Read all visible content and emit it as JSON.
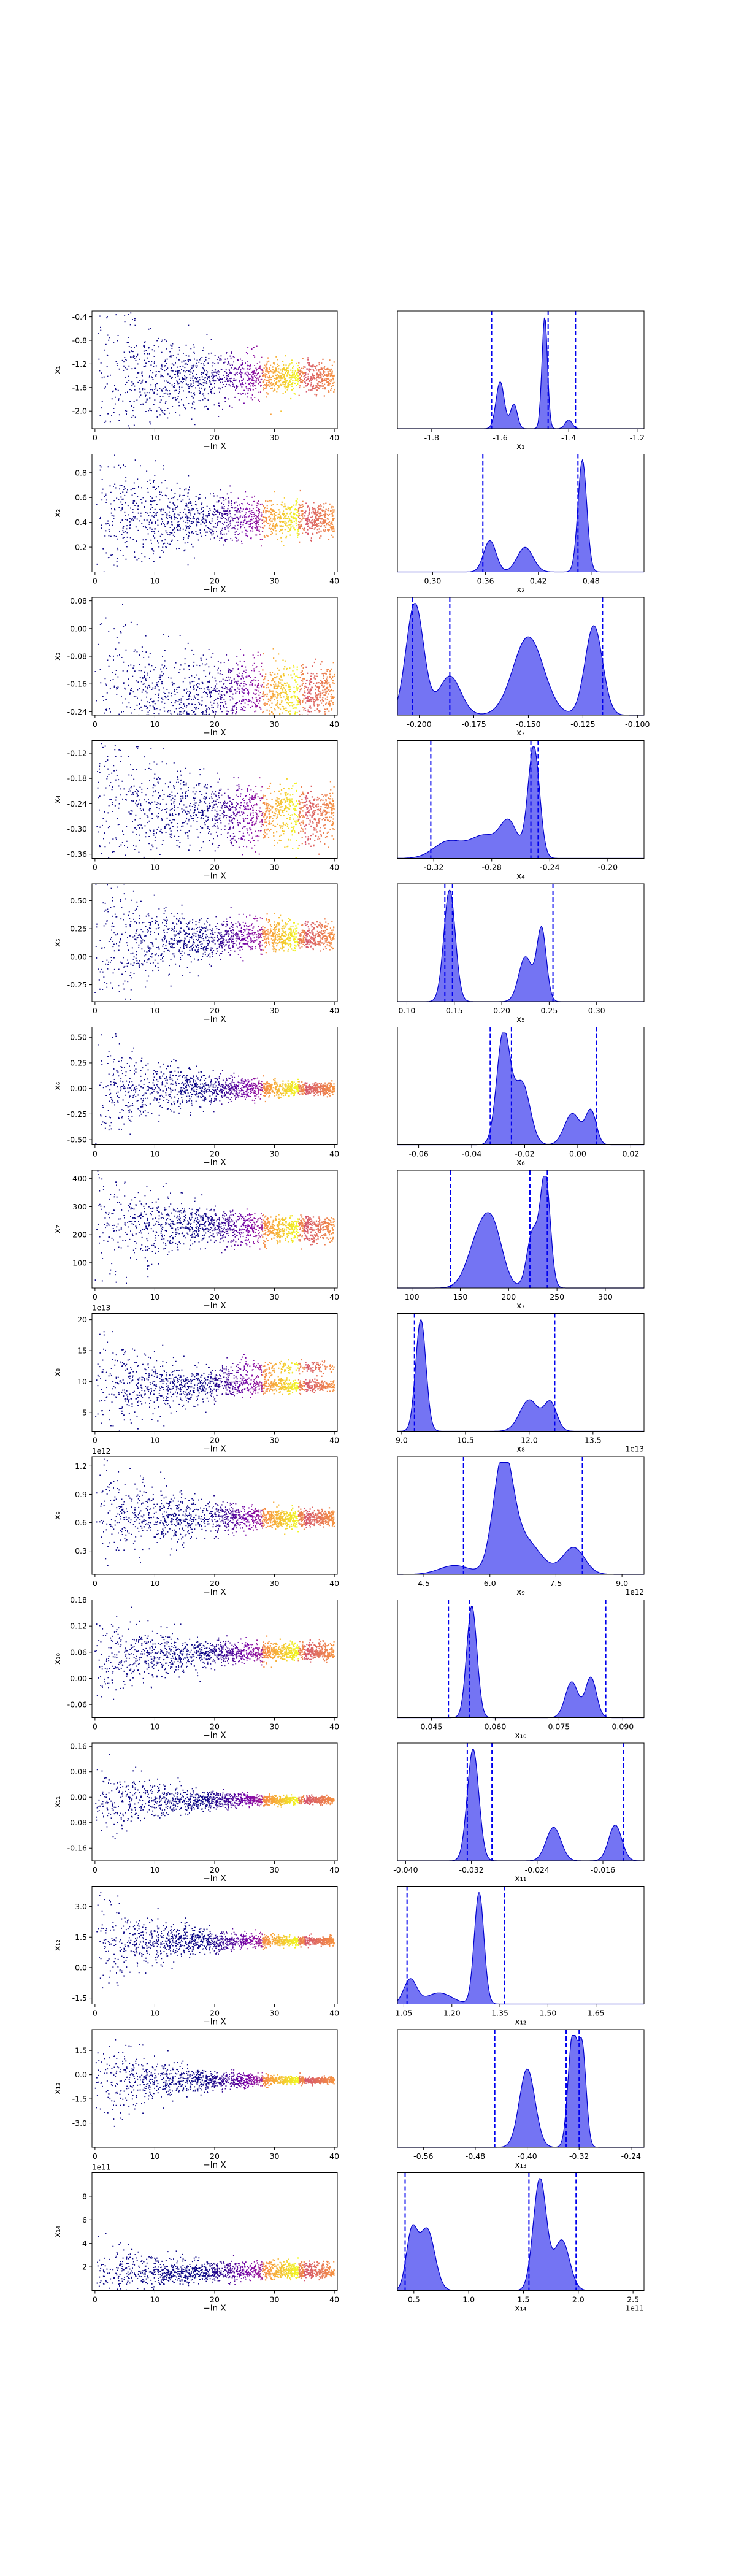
{
  "chart_data": [
    {
      "row": 1,
      "type": "scatter+density",
      "trace_ylabel": "x₁",
      "trace_yticks": [
        "-0.4",
        "-0.8",
        "-1.2",
        "-1.6",
        "-2.0"
      ],
      "trace_ylim": [
        -2.3,
        -0.3
      ],
      "converge": -1.42,
      "spread": 0.75,
      "flat": 0.1,
      "split": 0,
      "hist_xticks": [
        "-1.8",
        "-1.6",
        "-1.4",
        "-1.2"
      ],
      "hist_xlim": [
        -1.9,
        -1.18
      ],
      "hist_xlabel": "x₁",
      "dashed": [
        -1.625,
        -1.46,
        -1.38
      ],
      "peaks": [
        {
          "c": -1.6,
          "w": 0.012,
          "h": 0.42
        },
        {
          "c": -1.56,
          "w": 0.01,
          "h": 0.22
        },
        {
          "c": -1.47,
          "w": 0.008,
          "h": 1.0
        },
        {
          "c": -1.4,
          "w": 0.01,
          "h": 0.08
        }
      ],
      "offset": ""
    },
    {
      "row": 2,
      "type": "scatter+density",
      "trace_ylabel": "x₂",
      "trace_yticks": [
        "0.8",
        "0.6",
        "0.4",
        "0.2"
      ],
      "trace_ylim": [
        0.0,
        0.95
      ],
      "converge": 0.45,
      "spread": 0.3,
      "flat": 0.05,
      "split": -0.07,
      "hist_xticks": [
        "0.30",
        "0.36",
        "0.42",
        "0.48"
      ],
      "hist_xlim": [
        0.26,
        0.54
      ],
      "hist_xlabel": "x₂",
      "dashed": [
        0.357,
        0.465
      ],
      "peaks": [
        {
          "c": 0.365,
          "w": 0.007,
          "h": 0.28
        },
        {
          "c": 0.405,
          "w": 0.009,
          "h": 0.22
        },
        {
          "c": 0.47,
          "w": 0.005,
          "h": 1.0
        }
      ],
      "offset": ""
    },
    {
      "row": 3,
      "type": "scatter+density",
      "trace_ylabel": "x₃",
      "trace_yticks": [
        "0.08",
        "0.00",
        "-0.08",
        "-0.16",
        "-0.24"
      ],
      "trace_ylim": [
        -0.25,
        0.09
      ],
      "converge": -0.2,
      "spread": 0.12,
      "flat": 0.03,
      "split": 0.05,
      "hist_xticks": [
        "-0.200",
        "-0.175",
        "-0.150",
        "-0.125",
        "-0.100"
      ],
      "hist_xlim": [
        -0.21,
        -0.097
      ],
      "hist_xlabel": "x₃",
      "dashed": [
        -0.203,
        -0.186,
        -0.116
      ],
      "peaks": [
        {
          "c": -0.202,
          "w": 0.004,
          "h": 1.0
        },
        {
          "c": -0.186,
          "w": 0.005,
          "h": 0.35
        },
        {
          "c": -0.15,
          "w": 0.007,
          "h": 0.7
        },
        {
          "c": -0.12,
          "w": 0.004,
          "h": 0.8
        }
      ],
      "offset": ""
    },
    {
      "row": 4,
      "type": "scatter+density",
      "trace_ylabel": "x₄",
      "trace_yticks": [
        "-0.12",
        "-0.18",
        "-0.24",
        "-0.30",
        "-0.36"
      ],
      "trace_ylim": [
        -0.37,
        -0.09
      ],
      "converge": -0.25,
      "spread": 0.09,
      "flat": 0.02,
      "split": -0.05,
      "hist_xticks": [
        "-0.32",
        "-0.28",
        "-0.24",
        "-0.20"
      ],
      "hist_xlim": [
        -0.345,
        -0.175
      ],
      "hist_xlabel": "x₄",
      "dashed": [
        -0.322,
        -0.253,
        -0.248
      ],
      "peaks": [
        {
          "c": -0.31,
          "w": 0.01,
          "h": 0.15
        },
        {
          "c": -0.285,
          "w": 0.01,
          "h": 0.2
        },
        {
          "c": -0.268,
          "w": 0.006,
          "h": 0.3
        },
        {
          "c": -0.251,
          "w": 0.004,
          "h": 1.0
        }
      ],
      "offset": ""
    },
    {
      "row": 5,
      "type": "scatter+density",
      "trace_ylabel": "x₅",
      "trace_yticks": [
        "0.50",
        "0.25",
        "0.00",
        "-0.25"
      ],
      "trace_ylim": [
        -0.4,
        0.65
      ],
      "converge": 0.15,
      "spread": 0.35,
      "flat": 0.03,
      "split": 0.1,
      "hist_xticks": [
        "0.10",
        "0.15",
        "0.20",
        "0.25",
        "0.30"
      ],
      "hist_xlim": [
        0.09,
        0.35
      ],
      "hist_xlabel": "x₅",
      "dashed": [
        0.14,
        0.148,
        0.254
      ],
      "peaks": [
        {
          "c": 0.145,
          "w": 0.006,
          "h": 1.0
        },
        {
          "c": 0.225,
          "w": 0.007,
          "h": 0.4
        },
        {
          "c": 0.242,
          "w": 0.005,
          "h": 0.65
        }
      ],
      "offset": ""
    },
    {
      "row": 6,
      "type": "scatter+density",
      "trace_ylabel": "x₆",
      "trace_yticks": [
        "0.50",
        "0.25",
        "0.00",
        "-0.25",
        "-0.50"
      ],
      "trace_ylim": [
        -0.55,
        0.6
      ],
      "converge": 0.0,
      "spread": 0.3,
      "flat": 0.02,
      "split": 0,
      "hist_xticks": [
        "-0.06",
        "-0.04",
        "-0.02",
        "0.00",
        "0.02"
      ],
      "hist_xlim": [
        -0.068,
        0.025
      ],
      "hist_xlabel": "x₆",
      "dashed": [
        -0.033,
        -0.025,
        0.007
      ],
      "peaks": [
        {
          "c": -0.028,
          "w": 0.0025,
          "h": 1.0
        },
        {
          "c": -0.021,
          "w": 0.003,
          "h": 0.55
        },
        {
          "c": -0.002,
          "w": 0.003,
          "h": 0.28
        },
        {
          "c": 0.005,
          "w": 0.002,
          "h": 0.3
        }
      ],
      "offset": ""
    },
    {
      "row": 7,
      "type": "scatter+density",
      "trace_ylabel": "x₇",
      "trace_yticks": [
        "400",
        "300",
        "200",
        "100"
      ],
      "trace_ylim": [
        10,
        430
      ],
      "converge": 235,
      "spread": 130,
      "flat": 10,
      "split": -40,
      "hist_xticks": [
        "100",
        "150",
        "200",
        "250",
        "300"
      ],
      "hist_xlim": [
        85,
        340
      ],
      "hist_xlabel": "x₇",
      "dashed": [
        140,
        222,
        240
      ],
      "peaks": [
        {
          "c": 170,
          "w": 12,
          "h": 0.45
        },
        {
          "c": 185,
          "w": 10,
          "h": 0.4
        },
        {
          "c": 225,
          "w": 6,
          "h": 0.5
        },
        {
          "c": 238,
          "w": 5,
          "h": 1.0
        }
      ],
      "offset": ""
    },
    {
      "row": 8,
      "type": "scatter+density",
      "trace_ylabel": "x₈",
      "trace_yticks": [
        "20",
        "15",
        "10",
        "5"
      ],
      "trace_ylim": [
        2,
        21
      ],
      "converge": 9.3,
      "spread": 5,
      "flat": 0.3,
      "split": 3,
      "hist_xticks": [
        "9.0",
        "10.5",
        "12.0",
        "13.5"
      ],
      "hist_xlim": [
        8.9,
        14.7
      ],
      "hist_xlabel": "x₈",
      "offset": "1e13",
      "dashed": [
        9.3,
        12.6
      ],
      "peaks": [
        {
          "c": 9.45,
          "w": 0.12,
          "h": 1.0
        },
        {
          "c": 12.0,
          "w": 0.22,
          "h": 0.28
        },
        {
          "c": 12.5,
          "w": 0.15,
          "h": 0.25
        }
      ]
    },
    {
      "row": 9,
      "type": "scatter+density",
      "trace_ylabel": "x₉",
      "trace_yticks": [
        "1.2",
        "0.9",
        "0.6",
        "0.3"
      ],
      "trace_ylim": [
        0.05,
        1.3
      ],
      "converge": 0.65,
      "spread": 0.35,
      "flat": 0.03,
      "split": 0,
      "hist_xticks": [
        "4.5",
        "6.0",
        "7.5",
        "9.0"
      ],
      "hist_xlim": [
        3.9,
        9.5
      ],
      "hist_xlabel": "x₉",
      "offset": "1e12",
      "dashed": [
        5.4,
        8.1
      ],
      "peaks": [
        {
          "c": 5.2,
          "w": 0.35,
          "h": 0.08
        },
        {
          "c": 6.3,
          "w": 0.22,
          "h": 1.0
        },
        {
          "c": 6.8,
          "w": 0.35,
          "h": 0.3
        },
        {
          "c": 7.9,
          "w": 0.25,
          "h": 0.24
        }
      ]
    },
    {
      "row": 10,
      "type": "scatter+density",
      "trace_ylabel": "x₁₀",
      "trace_yticks": [
        "0.18",
        "0.12",
        "0.06",
        "0.00",
        "-0.06"
      ],
      "trace_ylim": [
        -0.09,
        0.18
      ],
      "converge": 0.056,
      "spread": 0.06,
      "flat": 0.005,
      "split": 0.015,
      "hist_xticks": [
        "0.045",
        "0.060",
        "0.075",
        "0.090"
      ],
      "hist_xlim": [
        0.037,
        0.095
      ],
      "hist_xlabel": "x₁₀",
      "dashed": [
        0.049,
        0.054,
        0.086
      ],
      "peaks": [
        {
          "c": 0.0545,
          "w": 0.0012,
          "h": 1.0
        },
        {
          "c": 0.078,
          "w": 0.0015,
          "h": 0.32
        },
        {
          "c": 0.0825,
          "w": 0.0013,
          "h": 0.36
        }
      ],
      "offset": ""
    },
    {
      "row": 11,
      "type": "scatter+density",
      "trace_ylabel": "x₁₁",
      "trace_yticks": [
        "0.16",
        "0.08",
        "0.00",
        "-0.08",
        "-0.16"
      ],
      "trace_ylim": [
        -0.2,
        0.17
      ],
      "converge": -0.01,
      "spread": 0.06,
      "flat": 0.004,
      "split": 0,
      "hist_xticks": [
        "-0.040",
        "-0.032",
        "-0.024",
        "-0.016"
      ],
      "hist_xlim": [
        -0.041,
        -0.011
      ],
      "hist_xlabel": "x₁₁",
      "dashed": [
        -0.0325,
        -0.0295,
        -0.0135
      ],
      "peaks": [
        {
          "c": -0.0318,
          "w": 0.0007,
          "h": 1.0
        },
        {
          "c": -0.022,
          "w": 0.0009,
          "h": 0.3
        },
        {
          "c": -0.0145,
          "w": 0.0008,
          "h": 0.32
        }
      ],
      "offset": ""
    },
    {
      "row": 12,
      "type": "scatter+density",
      "trace_ylabel": "x₁₂",
      "trace_yticks": [
        "3.0",
        "1.5",
        "0.0",
        "-1.5"
      ],
      "trace_ylim": [
        -1.8,
        4.0
      ],
      "converge": 1.3,
      "spread": 1.2,
      "flat": 0.07,
      "split": 0,
      "hist_xticks": [
        "1.05",
        "1.20",
        "1.35",
        "1.50",
        "1.65"
      ],
      "hist_xlim": [
        1.03,
        1.8
      ],
      "hist_xlabel": "x₁₂",
      "dashed": [
        1.06,
        1.365
      ],
      "peaks": [
        {
          "c": 1.07,
          "w": 0.02,
          "h": 0.22
        },
        {
          "c": 1.16,
          "w": 0.04,
          "h": 0.1
        },
        {
          "c": 1.285,
          "w": 0.015,
          "h": 1.0
        }
      ],
      "offset": ""
    },
    {
      "row": 13,
      "type": "scatter+density",
      "trace_ylabel": "x₁₃",
      "trace_yticks": [
        "1.5",
        "0.0",
        "-1.5",
        "-3.0"
      ],
      "trace_ylim": [
        -4.5,
        2.8
      ],
      "converge": -0.35,
      "spread": 1.5,
      "flat": 0.05,
      "split": 0,
      "hist_xticks": [
        "-0.56",
        "-0.48",
        "-0.40",
        "-0.32",
        "-0.24"
      ],
      "hist_xlim": [
        -0.6,
        -0.22
      ],
      "hist_xlabel": "x₁₃",
      "dashed": [
        -0.45,
        -0.34,
        -0.32
      ],
      "peaks": [
        {
          "c": -0.4,
          "w": 0.012,
          "h": 0.7
        },
        {
          "c": -0.33,
          "w": 0.007,
          "h": 1.0
        },
        {
          "c": -0.315,
          "w": 0.006,
          "h": 0.85
        }
      ],
      "offset": ""
    },
    {
      "row": 14,
      "type": "scatter+density",
      "trace_ylabel": "x₁₄",
      "trace_yticks": [
        "8",
        "6",
        "4",
        "2"
      ],
      "trace_ylim": [
        0,
        10
      ],
      "converge": 1.5,
      "spread": 1.5,
      "flat": 0.15,
      "split": 0.6,
      "hist_xticks": [
        "0.5",
        "1.0",
        "1.5",
        "2.0",
        "2.5"
      ],
      "hist_xlim": [
        0.35,
        2.6
      ],
      "hist_xlabel": "x₁₄",
      "offset": "1e11",
      "dashed": [
        0.42,
        1.55,
        1.98
      ],
      "peaks": [
        {
          "c": 0.48,
          "w": 0.05,
          "h": 0.5
        },
        {
          "c": 0.62,
          "w": 0.07,
          "h": 0.55
        },
        {
          "c": 1.65,
          "w": 0.06,
          "h": 1.0
        },
        {
          "c": 1.85,
          "w": 0.07,
          "h": 0.45
        }
      ]
    }
  ],
  "trace_xlabel": "−ln X",
  "trace_xticks": [
    "0",
    "10",
    "20",
    "30",
    "40"
  ],
  "colors": {
    "hist_fill": "#6d6df2",
    "hist_line": "#0000cc",
    "dashed": "#0000ee",
    "scatter_low": "#0c0786",
    "scatter_high": "#f0f921"
  }
}
